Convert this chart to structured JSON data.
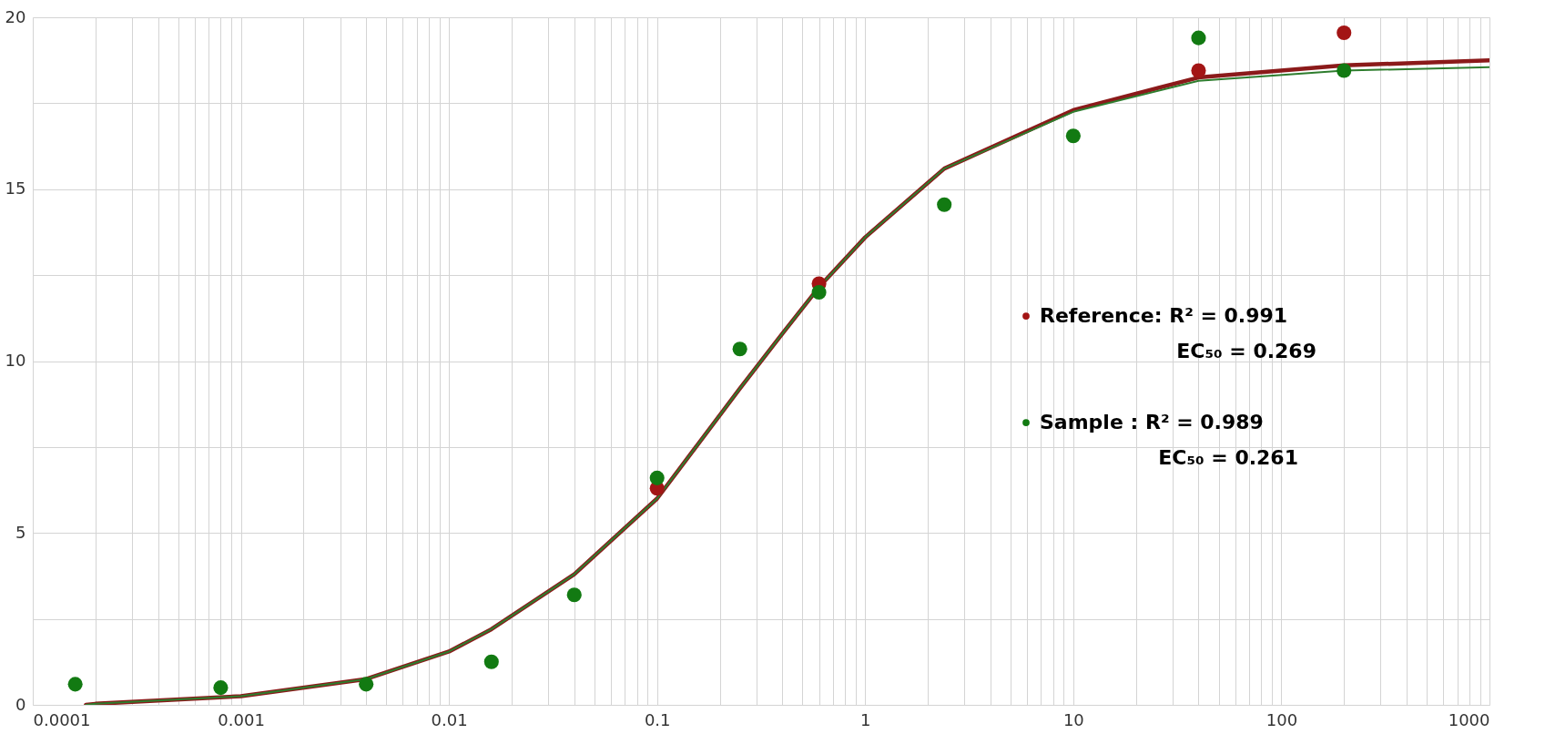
{
  "chart_data": {
    "type": "scatter",
    "log": "x",
    "grid": true,
    "marker": "circle",
    "legend": "right",
    "xlim": [
      0.0001,
      1000
    ],
    "ylim": [
      0,
      20
    ],
    "xticks": [
      0.0001,
      {
        "value": 0.0002,
        "label": null
      },
      {
        "value": 0.0003,
        "label": null
      },
      {
        "value": 0.0004,
        "label": null
      },
      {
        "value": 0.0005,
        "label": null
      },
      {
        "value": 0.0006,
        "label": null
      },
      {
        "value": 0.0007,
        "label": null
      },
      {
        "value": 0.0008,
        "label": null
      },
      {
        "value": 0.0009,
        "label": null
      },
      0.001,
      {
        "value": 0.002,
        "label": null
      },
      {
        "value": 0.003,
        "label": null
      },
      {
        "value": 0.004,
        "label": null
      },
      {
        "value": 0.005,
        "label": null
      },
      {
        "value": 0.006,
        "label": null
      },
      {
        "value": 0.007,
        "label": null
      },
      {
        "value": 0.008,
        "label": null
      },
      {
        "value": 0.009,
        "label": null
      },
      0.01,
      {
        "value": 0.02,
        "label": null
      },
      {
        "value": 0.03,
        "label": null
      },
      {
        "value": 0.04,
        "label": null
      },
      {
        "value": 0.05,
        "label": null
      },
      {
        "value": 0.06,
        "label": null
      },
      {
        "value": 0.07,
        "label": null
      },
      {
        "value": 0.08,
        "label": null
      },
      {
        "value": 0.09,
        "label": null
      },
      0.1,
      {
        "value": 0.2,
        "label": null
      },
      {
        "value": 0.3,
        "label": null
      },
      {
        "value": 0.4,
        "label": null
      },
      {
        "value": 0.5,
        "label": null
      },
      {
        "value": 0.6,
        "label": null
      },
      {
        "value": 0.7,
        "label": null
      },
      {
        "value": 0.8,
        "label": null
      },
      {
        "value": 0.9,
        "label": null
      },
      1,
      {
        "value": 2,
        "label": null
      },
      {
        "value": 3,
        "label": null
      },
      {
        "value": 4,
        "label": null
      },
      {
        "value": 5,
        "label": null
      },
      {
        "value": 6,
        "label": null
      },
      {
        "value": 7,
        "label": null
      },
      {
        "value": 8,
        "label": null
      },
      {
        "value": 9,
        "label": null
      },
      10,
      {
        "value": 20,
        "label": null
      },
      {
        "value": 30,
        "label": null
      },
      {
        "value": 40,
        "label": null
      },
      {
        "value": 50,
        "label": null
      },
      {
        "value": 60,
        "label": null
      },
      {
        "value": 70,
        "label": null
      },
      {
        "value": 80,
        "label": null
      },
      {
        "value": 90,
        "label": null
      },
      100,
      {
        "value": 200,
        "label": null
      },
      {
        "value": 300,
        "label": null
      },
      {
        "value": 400,
        "label": null
      },
      {
        "value": 500,
        "label": null
      },
      {
        "value": 600,
        "label": null
      },
      {
        "value": 700,
        "label": null
      },
      {
        "value": 800,
        "label": null
      },
      {
        "value": 900,
        "label": null
      },
      1000
    ],
    "yticks": [
      0,
      {
        "value": 2.5,
        "label": null
      },
      5,
      {
        "value": 7.5,
        "label": null
      },
      10,
      {
        "value": 12.5,
        "label": null
      },
      15,
      {
        "value": 17.5,
        "label": null
      },
      20
    ],
    "annotations": [
      "EC₅₀ = 0.269",
      "EC₅₀ = 0.261"
    ],
    "series": [
      {
        "type": "line",
        "marker": "none",
        "color": "#8b1a1a",
        "x": [
          0.00018,
          0.0002,
          0.001,
          0.004,
          0.01,
          0.016,
          0.04,
          0.1,
          0.25,
          0.4,
          0.6,
          1,
          2.4,
          10,
          40,
          200,
          1000
        ],
        "values": [
          0,
          0.03,
          0.25,
          0.75,
          1.55,
          2.2,
          3.8,
          6.0,
          9.2,
          10.8,
          12.15,
          13.6,
          15.6,
          17.3,
          18.25,
          18.6,
          18.75
        ]
      },
      {
        "type": "line",
        "marker": "none",
        "color": "#2e7d2e",
        "x": [
          0.00018,
          0.0002,
          0.001,
          0.004,
          0.01,
          0.016,
          0.04,
          0.1,
          0.25,
          0.4,
          0.6,
          1,
          2.4,
          10,
          40,
          200,
          1000
        ],
        "values": [
          0,
          0.03,
          0.25,
          0.75,
          1.55,
          2.2,
          3.8,
          6.0,
          9.2,
          10.8,
          12.15,
          13.6,
          15.6,
          17.25,
          18.15,
          18.45,
          18.55
        ]
      },
      {
        "name": "Reference: R² = 0.991",
        "color": "#a31515",
        "x": [
          0.1,
          0.6,
          40,
          200
        ],
        "values": [
          6.3,
          12.25,
          18.45,
          19.55
        ]
      },
      {
        "name": "Sample : R² = 0.989",
        "color": "#127a12",
        "x": [
          0.00016,
          0.0008,
          0.004,
          0.016,
          0.04,
          0.1,
          0.25,
          0.6,
          2.4,
          10,
          40,
          200
        ],
        "values": [
          0.6,
          0.5,
          0.6,
          1.25,
          3.2,
          6.6,
          10.35,
          12.0,
          14.55,
          16.55,
          19.4,
          18.45
        ]
      }
    ]
  }
}
